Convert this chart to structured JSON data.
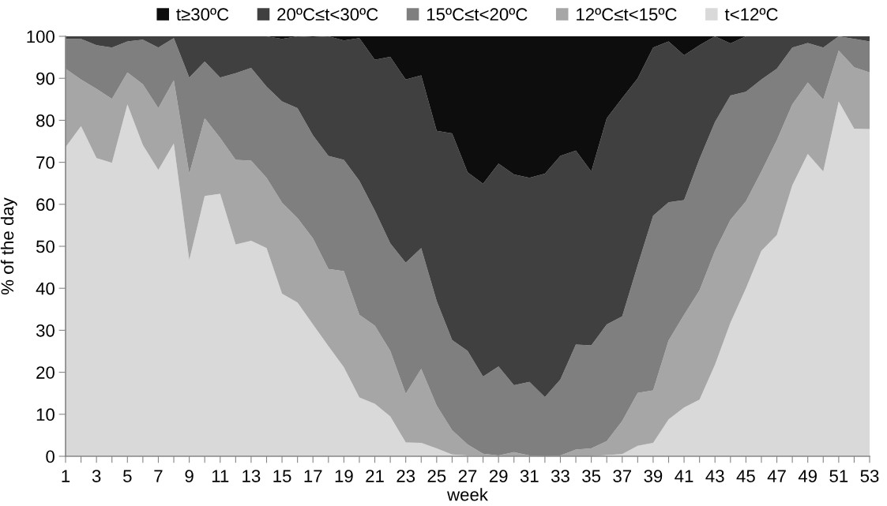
{
  "chart_data": {
    "type": "area",
    "stacked": true,
    "xlabel": "week",
    "ylabel": "% of the day",
    "categories": [
      "1",
      null,
      "3",
      null,
      "5",
      null,
      "7",
      null,
      "9",
      null,
      "11",
      null,
      "13",
      null,
      "15",
      null,
      "17",
      null,
      "19",
      null,
      "21",
      null,
      "23",
      null,
      "25",
      null,
      "27",
      null,
      "29",
      null,
      "31",
      null,
      "33",
      null,
      "35",
      null,
      "37",
      null,
      "39",
      null,
      "41",
      null,
      "43",
      null,
      "45",
      null,
      "47",
      null,
      "49",
      null,
      "51",
      null,
      "53"
    ],
    "ylim": [
      0,
      100
    ],
    "yticks": [
      0,
      10,
      20,
      30,
      40,
      50,
      60,
      70,
      80,
      90,
      100
    ],
    "grid": false,
    "legend": "top",
    "series": [
      {
        "name": "t<12ºC",
        "color": "#d9d9d9",
        "values": [
          73.6,
          78.6,
          71.0,
          69.9,
          83.8,
          74.1,
          68.2,
          74.5,
          46.7,
          62.0,
          62.5,
          50.4,
          51.3,
          49.6,
          38.7,
          36.6,
          31.4,
          26.2,
          21.2,
          14.0,
          12.5,
          9.5,
          3.3,
          3.2,
          1.9,
          0.4,
          0.2,
          0.1,
          0,
          0,
          0,
          0,
          0,
          0,
          0,
          0.3,
          0.5,
          2.5,
          3.2,
          8.8,
          11.6,
          13.5,
          21.8,
          31.8,
          40.0,
          48.9,
          52.7,
          64.5,
          72.0,
          67.8,
          84.5,
          78.0,
          77.9
        ]
      },
      {
        "name": "12ºC≤t<15ºC",
        "color": "#a6a6a6",
        "values": [
          18.7,
          11.1,
          16.5,
          15.2,
          7.6,
          14.5,
          14.7,
          15.0,
          20.6,
          18.5,
          13.3,
          20.2,
          19.1,
          16.7,
          21.7,
          20.1,
          20.5,
          18.4,
          22.9,
          19.7,
          18.6,
          15.6,
          11.6,
          17.6,
          10.2,
          5.8,
          2.6,
          0.5,
          0.2,
          1.0,
          0.2,
          0,
          0.2,
          1.6,
          1.9,
          3.3,
          7.9,
          12.6,
          12.5,
          18.8,
          22.1,
          26.0,
          27.1,
          24.5,
          20.7,
          18.9,
          22.6,
          19.3,
          17.0,
          17.1,
          12.1,
          14.6,
          13.5
        ]
      },
      {
        "name": "15ºC≤t<20ºC",
        "color": "#7f7f7f",
        "values": [
          7.1,
          9.7,
          10.4,
          12.2,
          7.4,
          10.6,
          14.4,
          10.1,
          22.9,
          13.5,
          14.4,
          20.6,
          22.1,
          21.7,
          24.1,
          26.2,
          24.5,
          26.9,
          26.5,
          31.9,
          27.4,
          25.6,
          31.2,
          28.8,
          24.9,
          21.5,
          22.3,
          18.4,
          21.2,
          15.9,
          17.5,
          14.1,
          18.1,
          25.0,
          24.5,
          27.8,
          24.9,
          30.4,
          41.6,
          32.9,
          27.3,
          31.3,
          30.7,
          29.6,
          26.1,
          21.9,
          17.0,
          13.5,
          9.4,
          12.4,
          3.4,
          6.8,
          7.4
        ]
      },
      {
        "name": "20ºC≤t<30ºC",
        "color": "#404040",
        "values": [
          0.6,
          0.6,
          2.1,
          2.7,
          1.2,
          0.8,
          2.7,
          0.4,
          9.8,
          6.0,
          9.8,
          8.8,
          7.5,
          12.0,
          14.9,
          17.1,
          23.4,
          28.5,
          28.4,
          34.0,
          35.9,
          44.4,
          43.6,
          41.1,
          40.5,
          49.2,
          42.5,
          45.9,
          48.3,
          50.2,
          48.6,
          53.2,
          53.2,
          46.2,
          41.4,
          49.1,
          52.0,
          44.5,
          40.0,
          38.3,
          34.5,
          27.1,
          20.4,
          12.4,
          13.2,
          10.3,
          7.7,
          2.7,
          1.6,
          2.7,
          0,
          0.6,
          1.2
        ]
      },
      {
        "name": "t≥30ºC",
        "color": "#0d0d0d",
        "values": [
          0,
          0,
          0,
          0,
          0,
          0,
          0,
          0,
          0,
          0,
          0,
          0,
          0,
          0,
          0.6,
          0,
          0.2,
          0,
          1.0,
          0.4,
          5.6,
          4.9,
          10.3,
          9.3,
          22.5,
          23.1,
          32.4,
          35.1,
          30.3,
          32.9,
          33.7,
          32.7,
          28.5,
          27.2,
          32.2,
          19.5,
          14.7,
          10.0,
          2.7,
          1.2,
          4.5,
          2.1,
          0,
          1.7,
          0,
          0,
          0,
          0,
          0,
          0,
          0,
          0,
          0
        ]
      }
    ]
  }
}
